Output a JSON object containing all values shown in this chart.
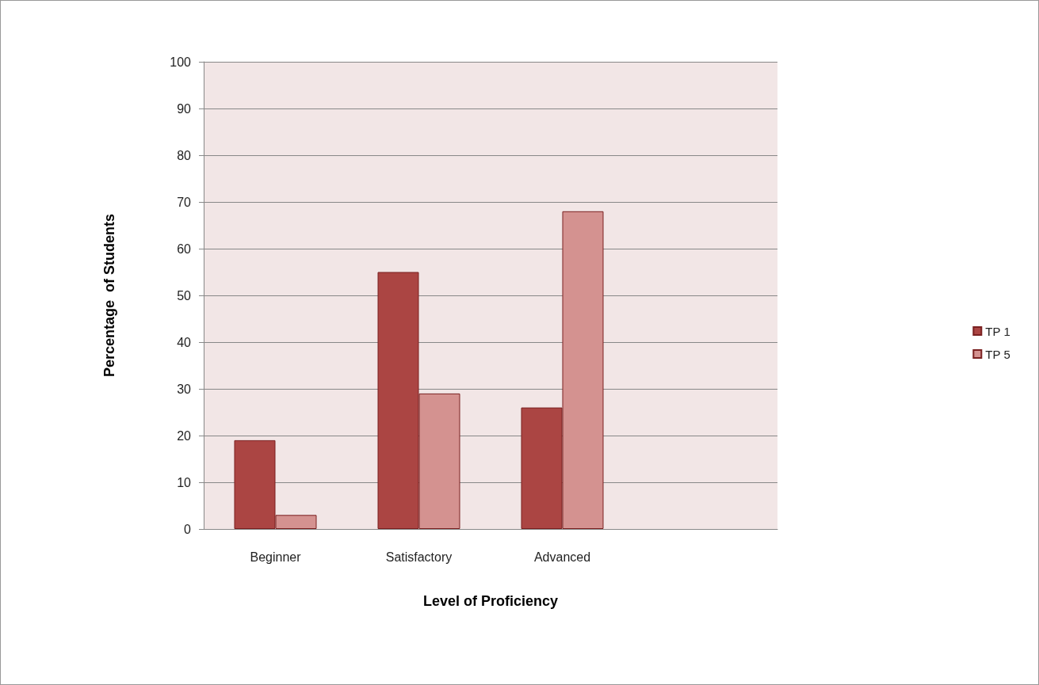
{
  "chart_data": {
    "type": "bar",
    "xlabel": "Level of Proficiency",
    "ylabel": "Percentage  of Students",
    "categories": [
      "Beginner",
      "Satisfactory",
      "Advanced",
      null
    ],
    "series": [
      {
        "name": "TP 1",
        "color": "#ab4543",
        "values": [
          19,
          55,
          26,
          null
        ]
      },
      {
        "name": "TP 5",
        "color": "#d49290",
        "values": [
          3,
          29,
          68,
          null
        ]
      }
    ],
    "ylim": [
      0,
      100
    ],
    "yticks": [
      0,
      10,
      20,
      30,
      40,
      50,
      60,
      70,
      80,
      90,
      100
    ],
    "grid": "y",
    "legend": "right"
  }
}
